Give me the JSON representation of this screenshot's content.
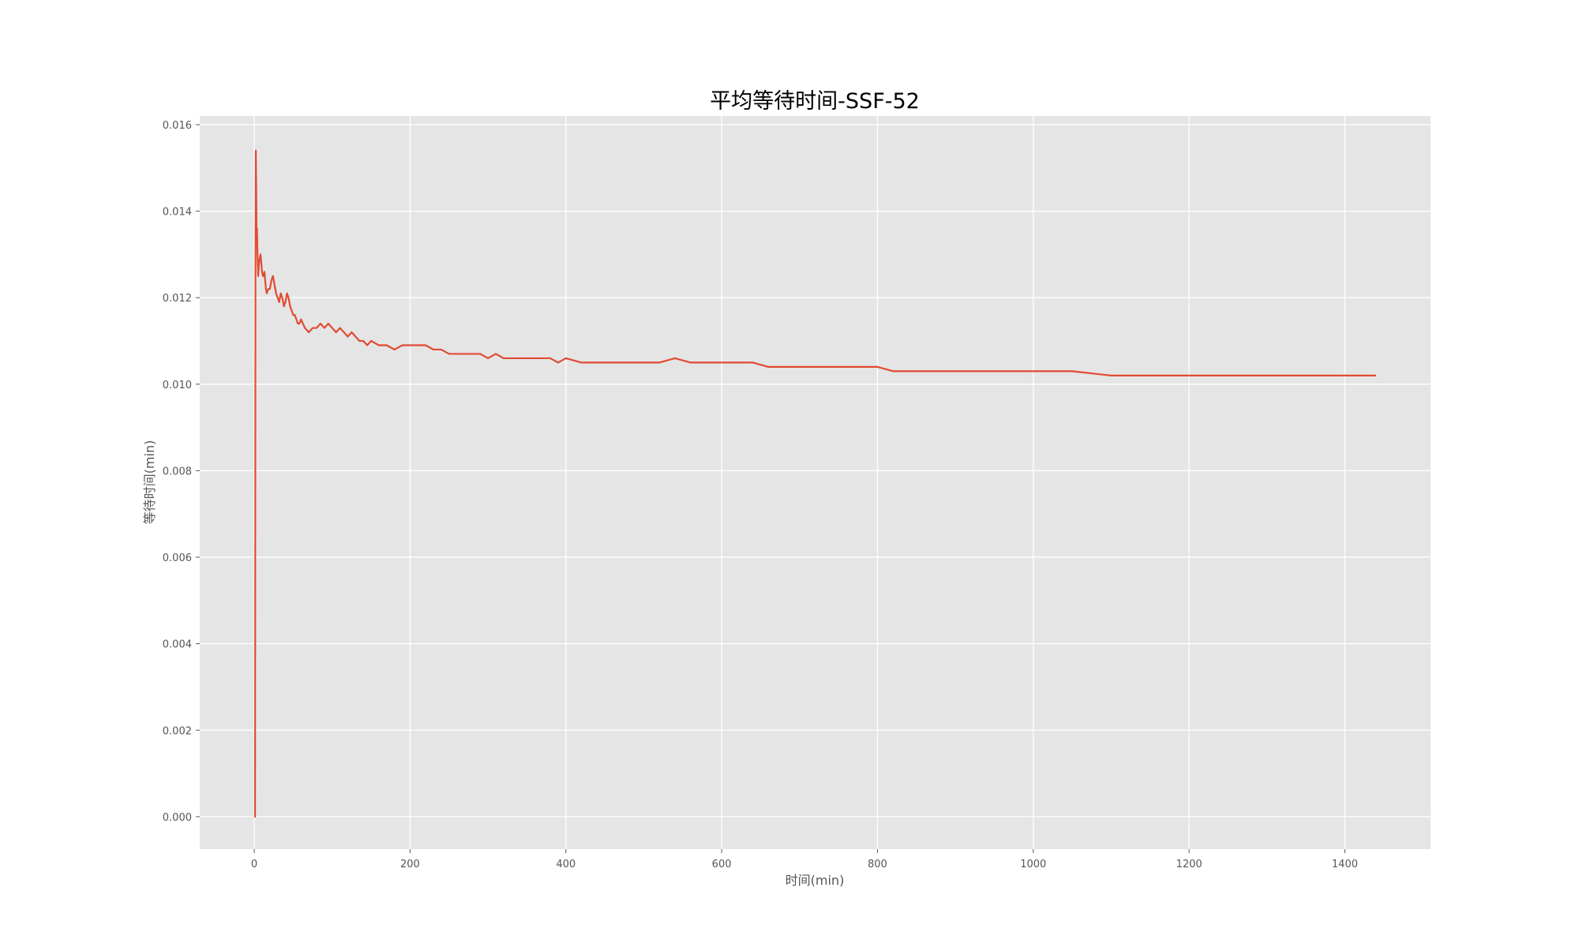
{
  "chart_data": {
    "type": "line",
    "title": "平均等待时间-SSF-52",
    "xlabel": "时间(min)",
    "ylabel": "等待时间(min)",
    "xlim": [
      -70,
      1510
    ],
    "ylim": [
      -0.00075,
      0.0162
    ],
    "xticks": [
      0,
      200,
      400,
      600,
      800,
      1000,
      1200,
      1400
    ],
    "xtick_labels": [
      "0",
      "200",
      "400",
      "600",
      "800",
      "1000",
      "1200",
      "1400"
    ],
    "yticks": [
      0.0,
      0.002,
      0.004,
      0.006,
      0.008,
      0.01,
      0.012,
      0.014,
      0.016
    ],
    "ytick_labels": [
      "0.000",
      "0.002",
      "0.004",
      "0.006",
      "0.008",
      "0.010",
      "0.012",
      "0.014",
      "0.016"
    ],
    "grid": true,
    "colors": {
      "line": "#e24a33",
      "plot_bg": "#e5e5e5",
      "grid": "#ffffff",
      "tick_text": "#555555"
    },
    "series": [
      {
        "x": [
          0,
          0.5,
          1,
          1.5,
          2,
          2.5,
          3,
          3.5,
          4,
          5,
          6,
          7,
          8,
          9,
          10,
          11,
          12,
          13,
          14,
          15,
          16,
          18,
          20,
          22,
          24,
          26,
          28,
          30,
          32,
          34,
          36,
          38,
          40,
          42,
          44,
          46,
          48,
          50,
          52,
          54,
          56,
          58,
          60,
          65,
          70,
          75,
          80,
          85,
          90,
          95,
          100,
          105,
          110,
          115,
          120,
          125,
          130,
          135,
          140,
          145,
          150,
          160,
          170,
          180,
          190,
          200,
          210,
          220,
          230,
          240,
          250,
          260,
          270,
          280,
          290,
          300,
          310,
          320,
          330,
          340,
          350,
          360,
          370,
          380,
          390,
          400,
          420,
          440,
          460,
          480,
          500,
          520,
          540,
          560,
          580,
          600,
          620,
          640,
          660,
          680,
          700,
          720,
          740,
          760,
          780,
          800,
          820,
          840,
          860,
          880,
          900,
          920,
          940,
          960,
          980,
          1000,
          1050,
          1100,
          1150,
          1200,
          1250,
          1300,
          1350,
          1400,
          1440
        ],
        "y": [
          0.0,
          0.0,
          0.0,
          0.0125,
          0.0154,
          0.0145,
          0.0133,
          0.0136,
          0.0131,
          0.0125,
          0.0128,
          0.0129,
          0.013,
          0.0128,
          0.0126,
          0.0125,
          0.0125,
          0.0126,
          0.0124,
          0.0122,
          0.0121,
          0.0122,
          0.0122,
          0.0124,
          0.0125,
          0.0123,
          0.0121,
          0.012,
          0.0119,
          0.0121,
          0.012,
          0.0118,
          0.0119,
          0.0121,
          0.012,
          0.0118,
          0.0117,
          0.0116,
          0.0116,
          0.0115,
          0.0114,
          0.0114,
          0.0115,
          0.0113,
          0.0112,
          0.0113,
          0.0113,
          0.0114,
          0.0113,
          0.0114,
          0.0113,
          0.0112,
          0.0113,
          0.0112,
          0.0111,
          0.0112,
          0.0111,
          0.011,
          0.011,
          0.0109,
          0.011,
          0.0109,
          0.0109,
          0.0108,
          0.0109,
          0.0109,
          0.0109,
          0.0109,
          0.0108,
          0.0108,
          0.0107,
          0.0107,
          0.0107,
          0.0107,
          0.0107,
          0.0106,
          0.0107,
          0.0106,
          0.0106,
          0.0106,
          0.0106,
          0.0106,
          0.0106,
          0.0106,
          0.0105,
          0.0106,
          0.0105,
          0.0105,
          0.0105,
          0.0105,
          0.0105,
          0.0105,
          0.0106,
          0.0105,
          0.0105,
          0.0105,
          0.0105,
          0.0105,
          0.0104,
          0.0104,
          0.0104,
          0.0104,
          0.0104,
          0.0104,
          0.0104,
          0.0104,
          0.0103,
          0.0103,
          0.0103,
          0.0103,
          0.0103,
          0.0103,
          0.0103,
          0.0103,
          0.0103,
          0.0103,
          0.0103,
          0.0102,
          0.0102,
          0.0102,
          0.0102,
          0.0102,
          0.0102,
          0.0102,
          0.0102
        ]
      }
    ]
  }
}
